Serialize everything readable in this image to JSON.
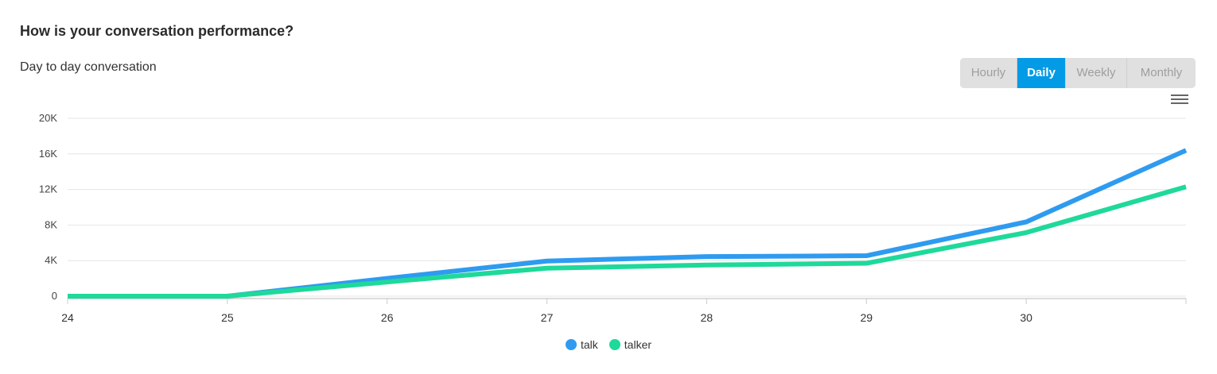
{
  "header": {
    "title": "How is your conversation performance?",
    "subtitle": "Day to day conversation"
  },
  "range": {
    "options": [
      "Hourly",
      "Daily",
      "Weekly",
      "Monthly"
    ],
    "active": "Daily"
  },
  "toolbar": {
    "menu_icon": "hamburger-menu-icon"
  },
  "chart_data": {
    "type": "line",
    "title": "",
    "xlabel": "",
    "ylabel": "",
    "x": [
      24,
      25,
      26,
      27,
      28,
      29,
      30,
      31
    ],
    "x_tick_labels": [
      "24",
      "25",
      "26",
      "27",
      "28",
      "29",
      "30"
    ],
    "y_ticks": [
      0,
      4000,
      8000,
      12000,
      16000,
      20000
    ],
    "y_tick_labels": [
      "0",
      "4K",
      "8K",
      "12K",
      "16K",
      "20K"
    ],
    "ylim": [
      0,
      20000
    ],
    "grid": true,
    "legend_position": "bottom-center",
    "series": [
      {
        "name": "talk",
        "color": "#2e9bf0",
        "values": [
          0,
          0,
          2000,
          3950,
          4450,
          4550,
          8350,
          16400
        ]
      },
      {
        "name": "talker",
        "color": "#1fd99a",
        "values": [
          0,
          0,
          1600,
          3150,
          3500,
          3700,
          7150,
          12300
        ]
      }
    ]
  }
}
